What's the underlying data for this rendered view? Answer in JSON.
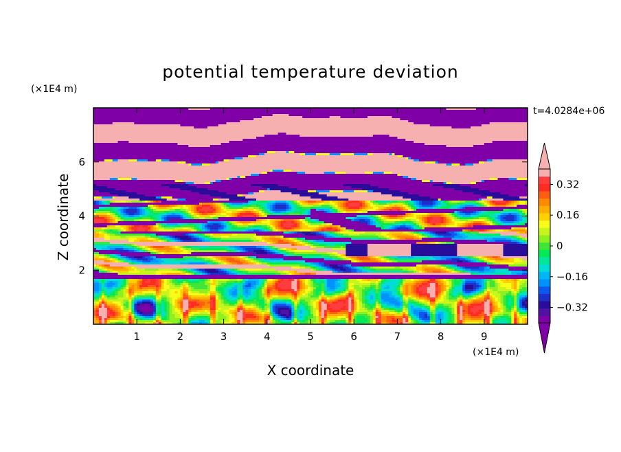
{
  "chart_data": {
    "type": "heatmap",
    "title": "potential temperature deviation",
    "xlabel": "X coordinate",
    "ylabel": "Z coordinate",
    "x_unit": "(×1E4 m)",
    "y_unit": "(×1E4 m)",
    "time_label": "t=4.0284e+06",
    "xlim": [
      0,
      10
    ],
    "ylim": [
      0,
      8
    ],
    "x_ticks": [
      "1",
      "2",
      "3",
      "4",
      "5",
      "6",
      "7",
      "8",
      "9"
    ],
    "y_ticks": [
      "2",
      "4",
      "6"
    ],
    "colorbar": {
      "tick_labels": [
        "0.32",
        "0.16",
        "0",
        "-0.16",
        "-0.32"
      ],
      "levels": [
        -0.4,
        -0.36,
        -0.32,
        -0.28,
        -0.24,
        -0.2,
        -0.16,
        -0.12,
        -0.08,
        -0.04,
        0,
        0.04,
        0.08,
        0.12,
        0.16,
        0.2,
        0.24,
        0.28,
        0.32,
        0.36,
        0.4
      ],
      "colors": [
        "#7f00a6",
        "#4f12a4",
        "#2a0c9a",
        "#1d2fc7",
        "#0b58ef",
        "#0092ff",
        "#00b7f5",
        "#00ddd6",
        "#00e79c",
        "#00ea58",
        "#3fe637",
        "#8df021",
        "#c8f61c",
        "#f8fd1a",
        "#ffd100",
        "#ffae00",
        "#ff8a00",
        "#ff5d12",
        "#ff2c24",
        "#ff3d3d",
        "#f7b0b0"
      ],
      "under_color": "#7f00a6",
      "over_color": "#f7b0b0"
    },
    "layers": [
      {
        "z_range": [
          6.5,
          8.0
        ],
        "dominant": "#f7b0b0",
        "secondary": "#7f00a6"
      },
      {
        "z_range": [
          4.5,
          6.5
        ],
        "dominant": "#f7b0b0",
        "secondary": "#7f00a6"
      },
      {
        "z_range": [
          3.5,
          4.5
        ],
        "dominant": "#8df021",
        "secondary": "#00ea58"
      },
      {
        "z_range": [
          2.0,
          3.5
        ],
        "dominant": "#3fe637",
        "secondary": "#7f00a6"
      },
      {
        "z_range": [
          0.0,
          2.0
        ],
        "dominant": "#8df021",
        "secondary": "#00ddd6"
      }
    ]
  }
}
